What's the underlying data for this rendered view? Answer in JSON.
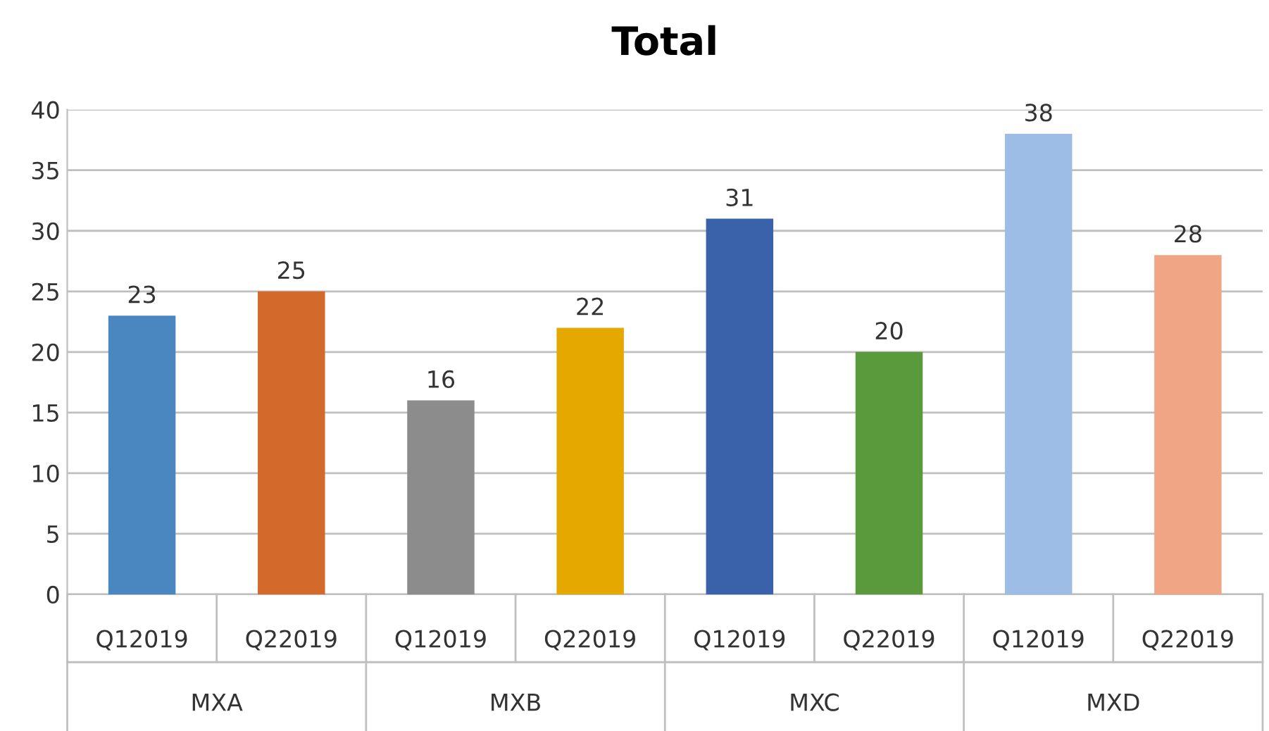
{
  "chart_data": {
    "type": "bar",
    "title": "Total",
    "categories": [
      "Q12019",
      "Q22019",
      "Q12019",
      "Q22019",
      "Q12019",
      "Q22019",
      "Q12019",
      "Q22019"
    ],
    "values": [
      23,
      25,
      16,
      22,
      31,
      20,
      38,
      28
    ],
    "colors": [
      "#4a86c0",
      "#d3692a",
      "#8c8c8c",
      "#e5a800",
      "#3a62ab",
      "#5b9a3c",
      "#9dbde6",
      "#f0a584"
    ],
    "annotations": [
      "MXA",
      "MXB",
      "MXC",
      "MXD"
    ],
    "ylim": [
      0,
      40
    ],
    "yticks": [
      0,
      5,
      10,
      15,
      20,
      25,
      30,
      35,
      40
    ],
    "grid": "y",
    "data_labels": true,
    "legend": false
  }
}
